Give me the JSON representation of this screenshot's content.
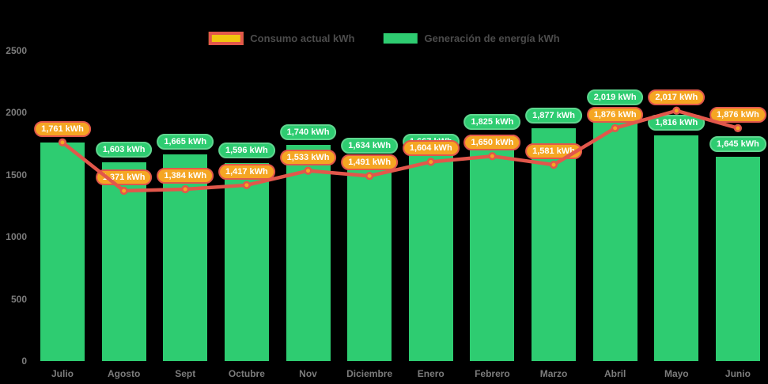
{
  "legend": {
    "items": [
      {
        "id": "consumo",
        "label": "Consumo actual kWh"
      },
      {
        "id": "generacion",
        "label": "Generación de energía kWh"
      }
    ]
  },
  "colors": {
    "background": "#000000",
    "bar_green": "#2ecc71",
    "green_label_border": "#5fd68f",
    "orange_label_bg": "#f5a623",
    "red_line": "#e2574b",
    "point_fill": "#f5a623",
    "legend_swatch_yellow": "#f1c40f",
    "legend_text": "#4c4c4c",
    "axis_text": "#7c7c7c",
    "label_text": "#ffffff"
  },
  "chart_data": {
    "type": "bar+line",
    "title": "",
    "xlabel": "",
    "ylabel": "",
    "grid": false,
    "legend_position": "top",
    "ylim": [
      0,
      2500
    ],
    "y_ticks": [
      0,
      500,
      1000,
      1500,
      2000,
      2500
    ],
    "categories": [
      "Julio",
      "Agosto",
      "Sept",
      "Octubre",
      "Nov",
      "Diciembre",
      "Enero",
      "Febrero",
      "Marzo",
      "Abril",
      "Mayo",
      "Junio"
    ],
    "series": [
      {
        "name": "Generación de energía kWh",
        "type": "bar",
        "color": "#2ecc71",
        "values": [
          1761,
          1603,
          1665,
          1596,
          1740,
          1634,
          1667,
          1825,
          1877,
          2019,
          1816,
          1645
        ],
        "labels": [
          "",
          "1,603 kWh",
          "1,665 kWh",
          "1,596 kWh",
          "1,740 kWh",
          "1,634 kWh",
          "1,667 kWh",
          "1,825 kWh",
          "1,877 kWh",
          "2,019 kWh",
          "1,816 kWh",
          "1,645 kWh"
        ]
      },
      {
        "name": "Consumo actual kWh",
        "type": "line",
        "color": "#e2574b",
        "point_color": "#f5a623",
        "values": [
          1761,
          1371,
          1384,
          1417,
          1533,
          1491,
          1604,
          1650,
          1581,
          1876,
          2017,
          1876
        ],
        "labels": [
          "1,761 kWh",
          "1,371 kWh",
          "1,384 kWh",
          "1,417 kWh",
          "1,533 kWh",
          "1,491 kWh",
          "1,604 kWh",
          "1,650 kWh",
          "1,581 kWh",
          "1,876 kWh",
          "2,017 kWh",
          "1,876 kWh"
        ]
      }
    ]
  }
}
